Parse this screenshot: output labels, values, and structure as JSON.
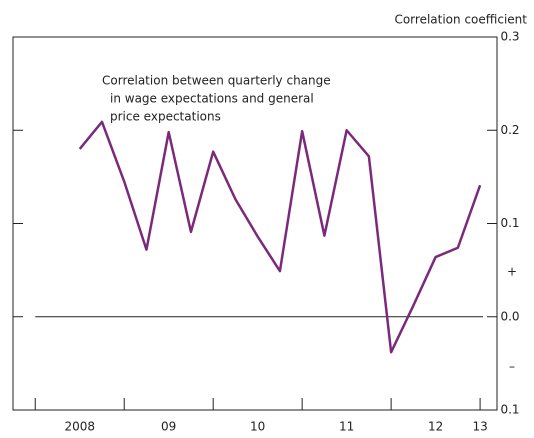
{
  "chart_data": {
    "type": "line",
    "axis_label": "Correlation coefficient",
    "annotation_lines": [
      "Correlation between quarterly change",
      "in wage expectations and general",
      "price expectations"
    ],
    "sign_labels": [
      "+",
      "–"
    ],
    "x": [
      2008.5,
      2008.75,
      2009,
      2009.25,
      2009.5,
      2009.75,
      2010,
      2010.25,
      2010.5,
      2010.75,
      2011,
      2011.25,
      2011.5,
      2011.75,
      2012,
      2012.25,
      2012.5,
      2012.75,
      2013
    ],
    "series": [
      {
        "name": "Correlation",
        "color": "#7b2a7b",
        "values": [
          0.18,
          0.209,
          0.145,
          0.072,
          0.198,
          0.091,
          0.177,
          0.126,
          0.086,
          0.049,
          0.199,
          0.087,
          0.2,
          0.172,
          -0.038,
          0.012,
          0.064,
          0.074,
          0.141
        ]
      }
    ],
    "xlim": [
      2007.75,
      2013.19
    ],
    "xticks": [
      {
        "value": 2008.5,
        "label": "2008"
      },
      {
        "value": 2009.5,
        "label": "09"
      },
      {
        "value": 2010.5,
        "label": "10"
      },
      {
        "value": 2011.5,
        "label": "11"
      },
      {
        "value": 2012.5,
        "label": "12"
      },
      {
        "value": 2013,
        "label": "13"
      }
    ],
    "xtick_marks": [
      2008,
      2009,
      2010,
      2011,
      2012,
      2013
    ],
    "ylim": [
      -0.1,
      0.3
    ],
    "yticks": [
      0.3,
      0.2,
      0.1,
      {
        "value": 0,
        "label": "0.0"
      },
      {
        "value": -0.1,
        "label": "0.1"
      }
    ],
    "zero_line": true
  }
}
